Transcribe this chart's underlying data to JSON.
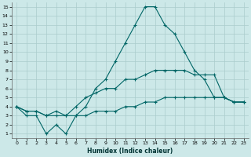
{
  "xlabel": "Humidex (Indice chaleur)",
  "xlim": [
    -0.5,
    23.5
  ],
  "ylim": [
    0.5,
    15.5
  ],
  "xticks": [
    0,
    1,
    2,
    3,
    4,
    5,
    6,
    7,
    8,
    9,
    10,
    11,
    12,
    13,
    14,
    15,
    16,
    17,
    18,
    19,
    20,
    21,
    22,
    23
  ],
  "yticks": [
    1,
    2,
    3,
    4,
    5,
    6,
    7,
    8,
    9,
    10,
    11,
    12,
    13,
    14,
    15
  ],
  "background_color": "#cce8e8",
  "grid_color": "#aacccc",
  "line_color": "#006666",
  "lines": [
    {
      "x": [
        0,
        1,
        2,
        3,
        4,
        5,
        6,
        7,
        8,
        9,
        10,
        11,
        12,
        13,
        14,
        15,
        16,
        17,
        18,
        19,
        20,
        21,
        22,
        23
      ],
      "y": [
        4,
        3,
        3,
        1,
        2,
        1,
        3,
        4,
        6,
        7,
        9,
        11,
        13,
        15,
        15,
        13,
        12,
        10,
        8,
        7,
        5,
        5,
        4.5,
        4.5
      ]
    },
    {
      "x": [
        0,
        1,
        2,
        3,
        4,
        5,
        6,
        7,
        8,
        9,
        10,
        11,
        12,
        13,
        14,
        15,
        16,
        17,
        18,
        19,
        20,
        21,
        22,
        23
      ],
      "y": [
        4,
        3.5,
        3.5,
        3,
        3.5,
        3,
        4,
        5,
        5.5,
        6,
        6,
        7,
        7,
        7.5,
        8,
        8,
        8,
        8,
        7.5,
        7.5,
        7.5,
        5,
        4.5,
        4.5
      ]
    },
    {
      "x": [
        0,
        1,
        2,
        3,
        4,
        5,
        6,
        7,
        8,
        9,
        10,
        11,
        12,
        13,
        14,
        15,
        16,
        17,
        18,
        19,
        20,
        21,
        22,
        23
      ],
      "y": [
        4,
        3.5,
        3.5,
        3,
        3,
        3,
        3,
        3,
        3.5,
        3.5,
        3.5,
        4,
        4,
        4.5,
        4.5,
        5,
        5,
        5,
        5,
        5,
        5,
        5,
        4.5,
        4.5
      ]
    }
  ]
}
